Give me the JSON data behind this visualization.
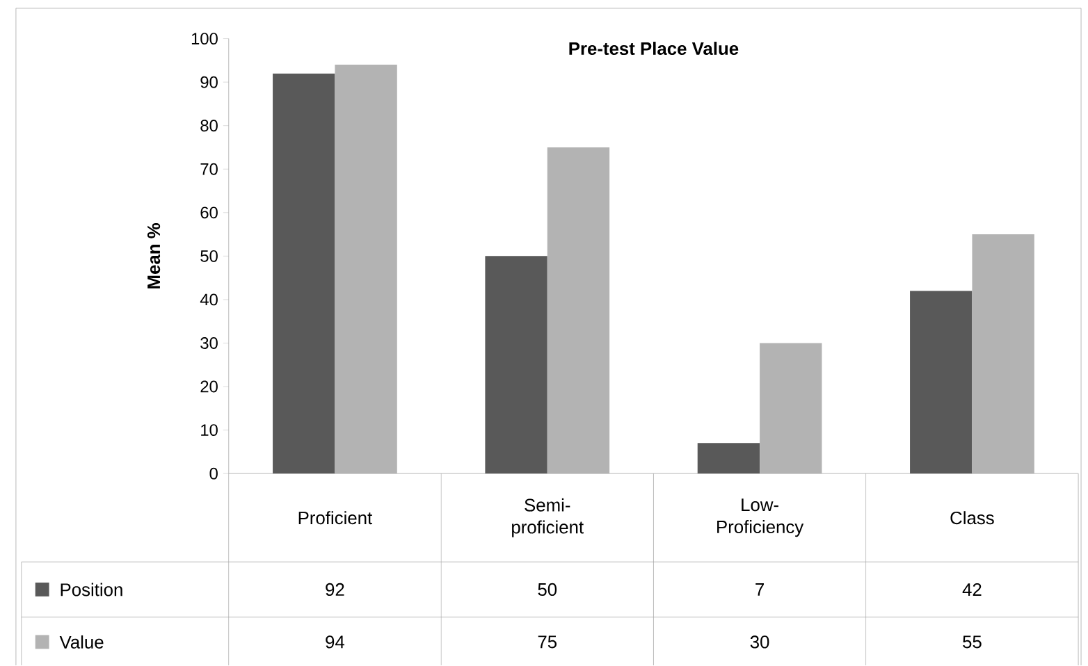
{
  "chart_data": {
    "type": "bar",
    "title": "Pre-test Place Value",
    "ylabel": "Mean %",
    "categories": [
      "Proficient",
      "Semi-proficient",
      "Low-Proficiency",
      "Class"
    ],
    "series": [
      {
        "name": "Position",
        "color": "#595959",
        "values": [
          92,
          50,
          7,
          42
        ]
      },
      {
        "name": "Value",
        "color": "#b3b3b3",
        "values": [
          94,
          75,
          30,
          55
        ]
      }
    ],
    "ylim": [
      0,
      100
    ],
    "yticks": [
      0,
      10,
      20,
      30,
      40,
      50,
      60,
      70,
      80,
      90,
      100
    ],
    "grid": false,
    "data_labels": true,
    "legend": "bottom left"
  }
}
